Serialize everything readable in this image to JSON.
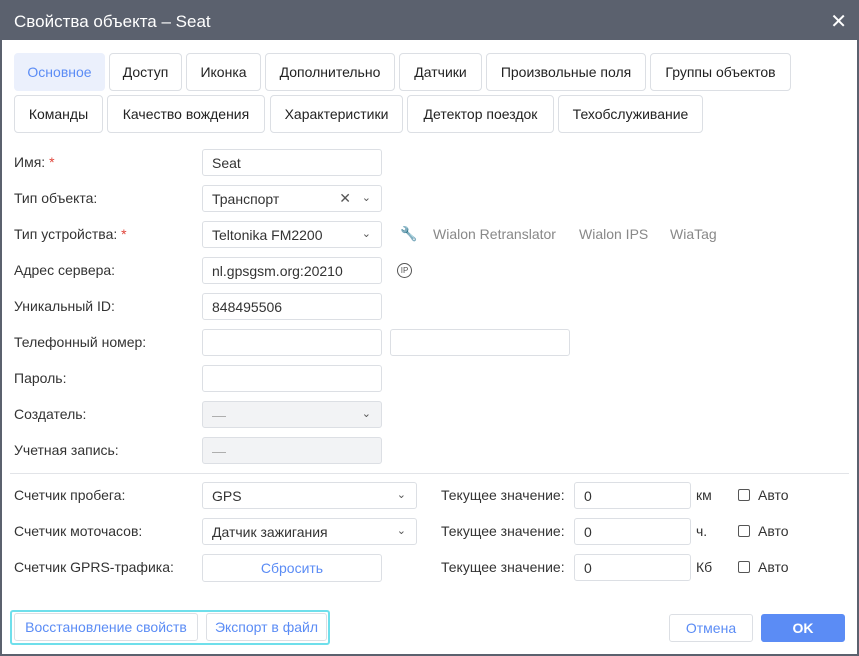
{
  "title": "Свойства объекта – Seat",
  "tabs_row1": [
    "Основное",
    "Доступ",
    "Иконка",
    "Дополнительно",
    "Датчики",
    "Произвольные поля",
    "Группы объектов"
  ],
  "tabs_row2": [
    "Команды",
    "Качество вождения",
    "Характеристики",
    "Детектор поездок",
    "Техобслуживание"
  ],
  "fields": {
    "name": {
      "label": "Имя:",
      "value": "Seat"
    },
    "type": {
      "label": "Тип объекта:",
      "value": "Транспорт"
    },
    "device": {
      "label": "Тип устройства:",
      "value": "Teltonika FM2200",
      "links": [
        "Wialon Retranslator",
        "Wialon IPS",
        "WiaTag"
      ]
    },
    "server": {
      "label": "Адрес сервера:",
      "value": "nl.gpsgsm.org:20210",
      "ip_icon": "IP"
    },
    "uid": {
      "label": "Уникальный ID:",
      "value": "848495506"
    },
    "phone": {
      "label": "Телефонный номер:",
      "value": "",
      "value2": ""
    },
    "password": {
      "label": "Пароль:",
      "value": ""
    },
    "creator": {
      "label": "Создатель:",
      "value": "—"
    },
    "account": {
      "label": "Учетная запись:",
      "value": "—"
    }
  },
  "required_mark": "*",
  "counters": [
    {
      "label": "Счетчик пробега:",
      "value": "GPS",
      "current_label": "Текущее значение:",
      "current": "0",
      "unit": "км",
      "auto": "Авто"
    },
    {
      "label": "Счетчик моточасов:",
      "value": "Датчик зажигания",
      "current_label": "Текущее значение:",
      "current": "0",
      "unit": "ч.",
      "auto": "Авто"
    },
    {
      "label": "Счетчик GPRS-трафика:",
      "value": "Сбросить",
      "current_label": "Текущее значение:",
      "current": "0",
      "unit": "Кб",
      "auto": "Авто"
    }
  ],
  "footer": {
    "restore": "Восстановление свойств",
    "export": "Экспорт в файл",
    "cancel": "Отмена",
    "ok": "OK"
  },
  "colors": {
    "accent": "#5b8cf5",
    "titlebar": "#5b616e",
    "highlight": "#6fdfeb"
  }
}
